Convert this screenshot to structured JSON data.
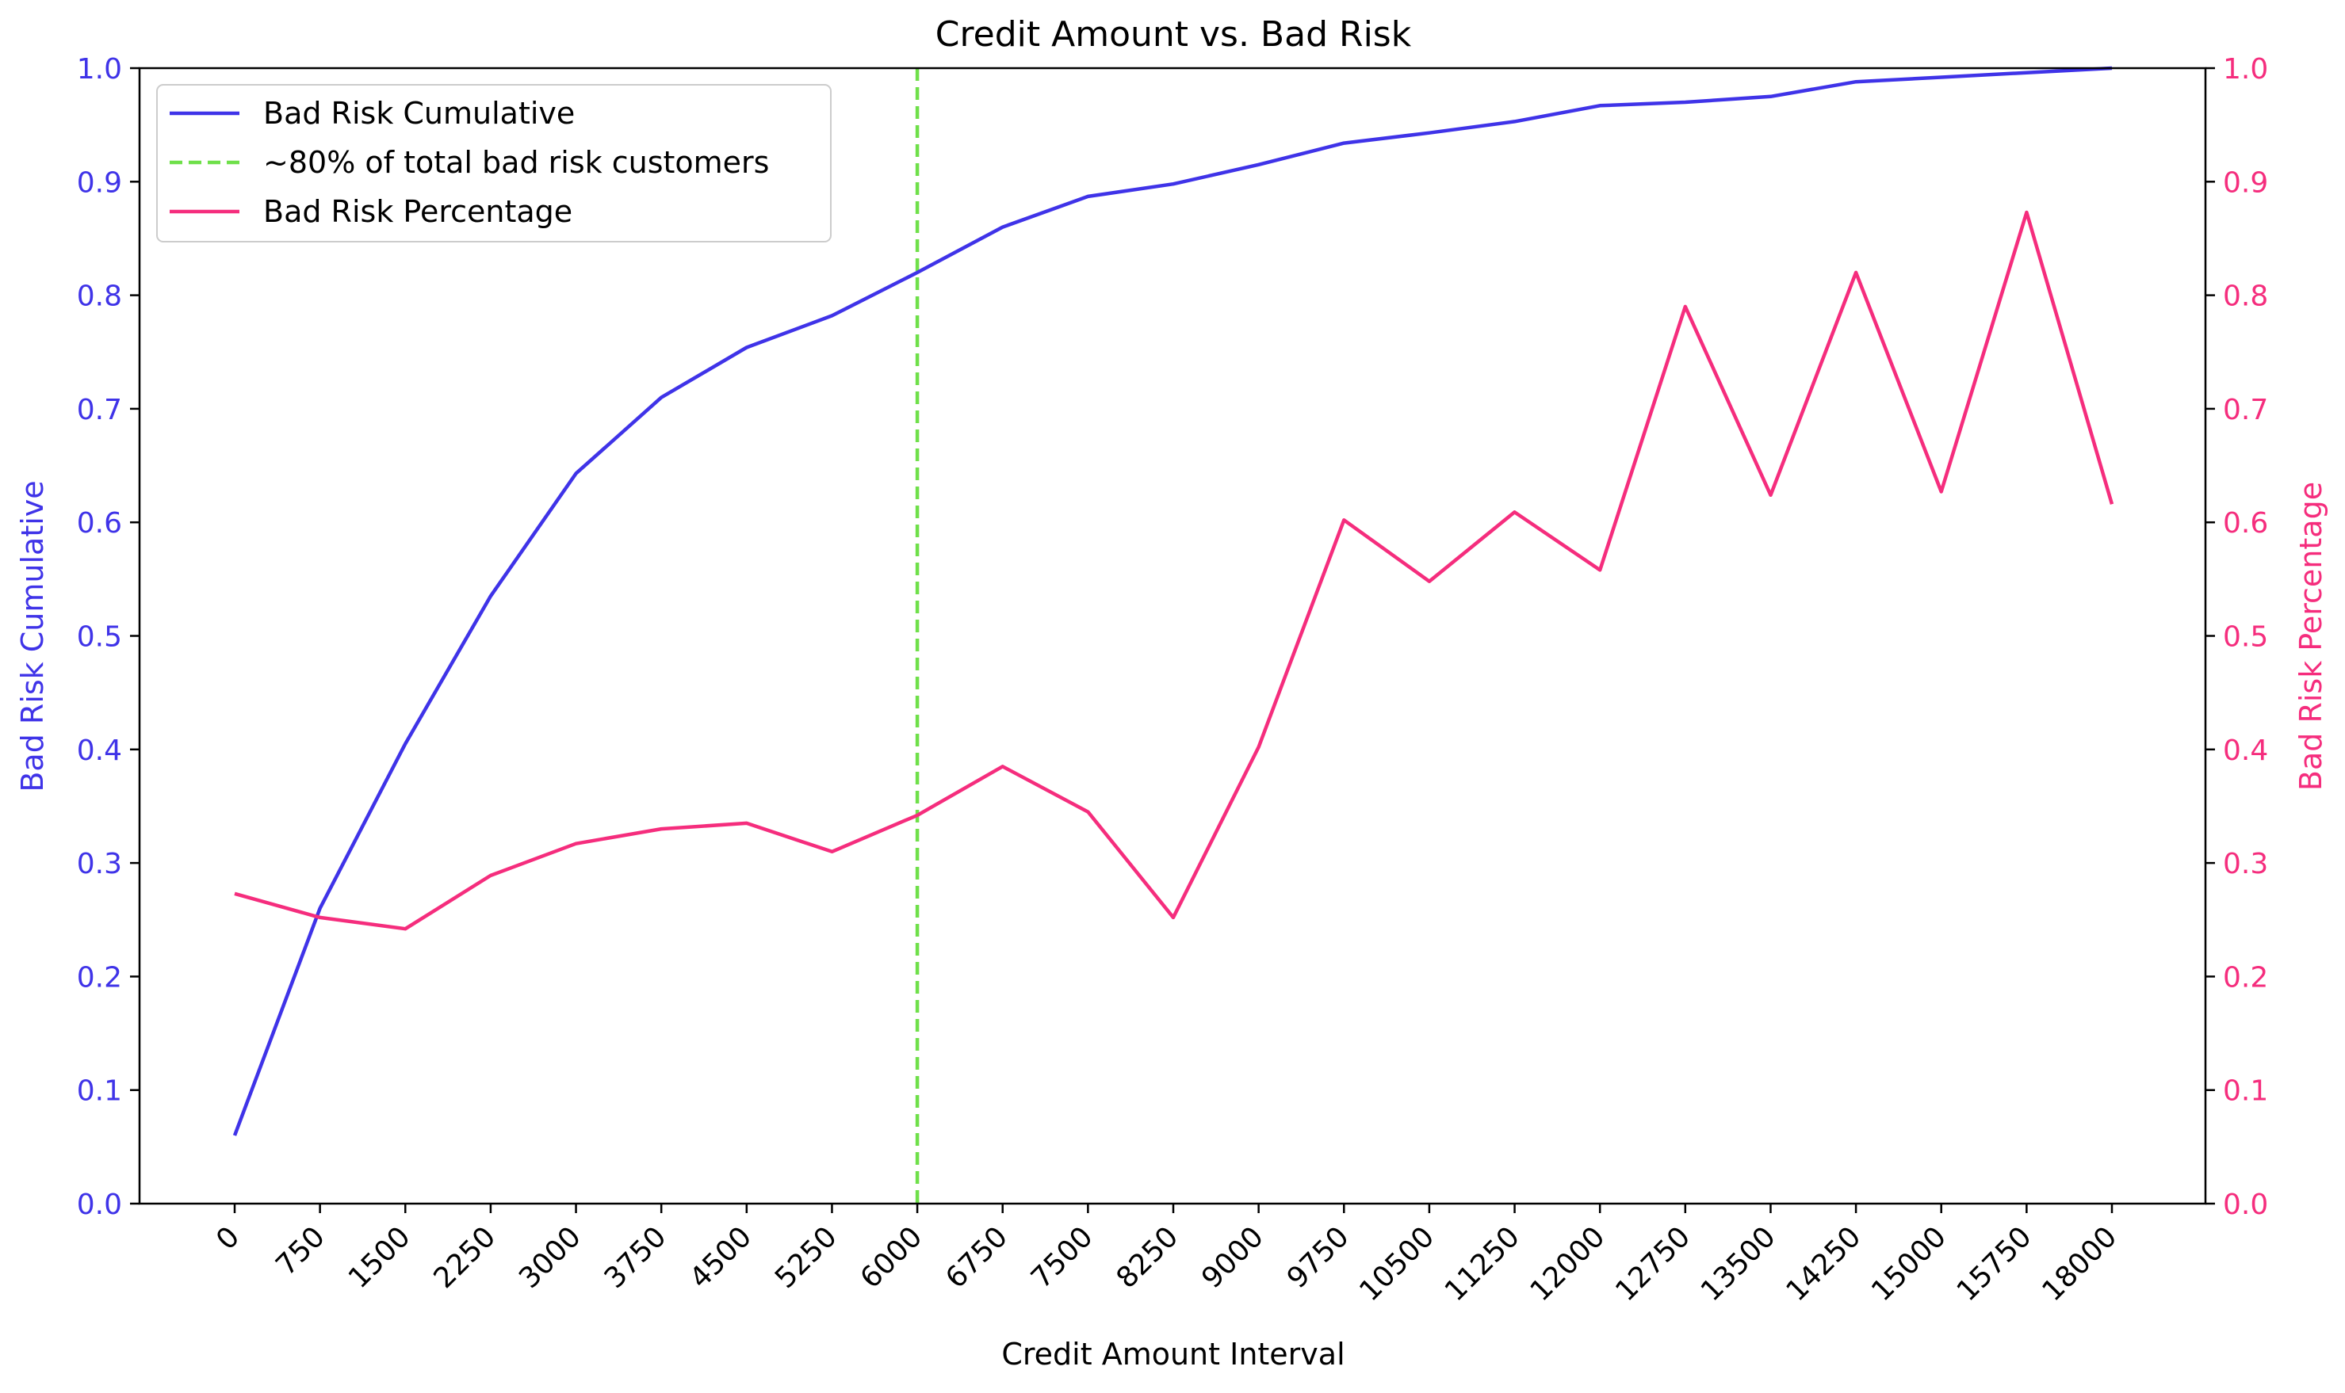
{
  "chart_data": {
    "type": "line",
    "title": "Credit Amount vs. Bad Risk",
    "xlabel": "Credit Amount Interval",
    "ylabel_left": "Bad Risk Cumulative",
    "ylabel_right": "Bad Risk Percentage",
    "categories": [
      "0",
      "750",
      "1500",
      "2250",
      "3000",
      "3750",
      "4500",
      "5250",
      "6000",
      "6750",
      "7500",
      "8250",
      "9000",
      "9750",
      "10500",
      "11250",
      "12000",
      "12750",
      "13500",
      "14250",
      "15000",
      "15750",
      "18000"
    ],
    "ylim_left": [
      0.0,
      1.0
    ],
    "ylim_right": [
      0.0,
      1.0
    ],
    "yticks_left": [
      "0.0",
      "0.1",
      "0.2",
      "0.3",
      "0.4",
      "0.5",
      "0.6",
      "0.7",
      "0.8",
      "0.9",
      "1.0"
    ],
    "yticks_right": [
      "0.0",
      "0.1",
      "0.2",
      "0.3",
      "0.4",
      "0.5",
      "0.6",
      "0.7",
      "0.8",
      "0.9",
      "1.0"
    ],
    "grid": false,
    "legend_position": "top-left",
    "series": [
      {
        "name": "Bad Risk Cumulative",
        "axis": "left",
        "color": "#3f33e8",
        "style": "solid",
        "values": [
          0.06,
          0.26,
          0.405,
          0.535,
          0.643,
          0.71,
          0.754,
          0.782,
          0.82,
          0.86,
          0.887,
          0.898,
          0.915,
          0.934,
          0.943,
          0.953,
          0.967,
          0.97,
          0.975,
          0.988,
          0.992,
          0.996,
          1.0
        ]
      },
      {
        "name": "Bad Risk Percentage",
        "axis": "right",
        "color": "#f52d7d",
        "style": "solid",
        "values": [
          0.273,
          0.252,
          0.242,
          0.289,
          0.317,
          0.33,
          0.335,
          0.31,
          0.342,
          0.385,
          0.345,
          0.252,
          0.402,
          0.602,
          0.548,
          0.609,
          0.558,
          0.79,
          0.624,
          0.82,
          0.627,
          0.873,
          0.616
        ]
      }
    ],
    "vline": {
      "name": "~80% of total bad risk customers",
      "x": "6000",
      "color": "#6fe04a",
      "style": "dashed"
    }
  }
}
